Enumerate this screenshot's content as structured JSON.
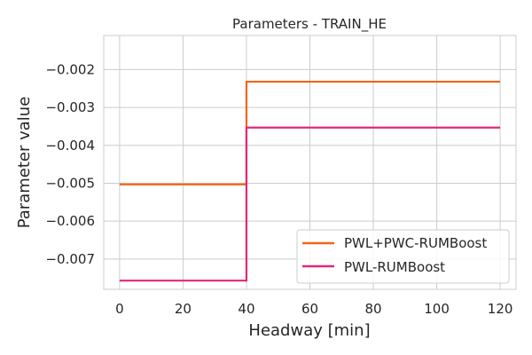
{
  "chart_data": {
    "type": "line",
    "title": "Parameters - TRAIN_HE",
    "xlabel": "Headway [min]",
    "ylabel": "Parameter value",
    "xlim": [
      -5,
      125
    ],
    "ylim": [
      -0.0078,
      -0.0011
    ],
    "xticks": [
      0,
      20,
      40,
      60,
      80,
      100,
      120
    ],
    "xtick_labels": [
      "0",
      "20",
      "40",
      "60",
      "80",
      "100",
      "120"
    ],
    "yticks": [
      -0.007,
      -0.006,
      -0.005,
      -0.004,
      -0.003,
      -0.002
    ],
    "ytick_labels": [
      "−0.007",
      "−0.006",
      "−0.005",
      "−0.004",
      "−0.003",
      "−0.002"
    ],
    "grid": true,
    "legend_position": "lower right",
    "series": [
      {
        "name": "PWL+PWC-RUMBoost",
        "color": "#f26419",
        "step": true,
        "x": [
          0,
          40,
          40,
          120
        ],
        "y": [
          -0.00503,
          -0.00503,
          -0.00232,
          -0.00232
        ]
      },
      {
        "name": "PWL-RUMBoost",
        "color": "#e0297a",
        "step": true,
        "x": [
          0,
          40,
          40,
          120
        ],
        "y": [
          -0.00757,
          -0.00757,
          -0.00353,
          -0.00353
        ]
      }
    ]
  }
}
